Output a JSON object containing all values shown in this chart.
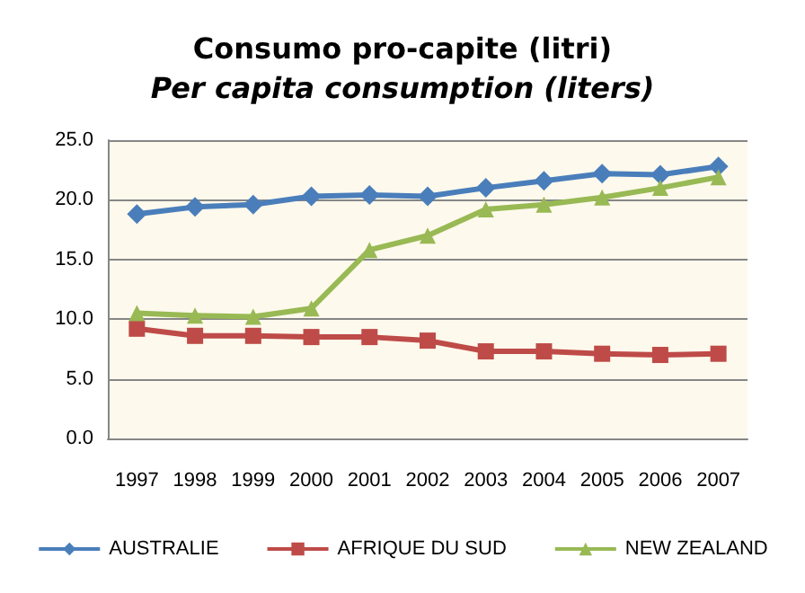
{
  "chart_data": {
    "type": "line",
    "title": "Consumo pro-capite (litri)",
    "subtitle": "Per capita consumption (liters)",
    "categories": [
      "1997",
      "1998",
      "1999",
      "2000",
      "2001",
      "2002",
      "2003",
      "2004",
      "2005",
      "2006",
      "2007"
    ],
    "series": [
      {
        "name": "AUSTRALIE",
        "color": "#4a7ebb",
        "marker": "diamond",
        "values": [
          18.8,
          19.4,
          19.6,
          20.3,
          20.4,
          20.3,
          21.0,
          21.6,
          22.2,
          22.1,
          22.8
        ]
      },
      {
        "name": "AFRIQUE DU SUD",
        "color": "#be4b48",
        "marker": "square",
        "values": [
          9.2,
          8.6,
          8.6,
          8.5,
          8.5,
          8.2,
          7.3,
          7.3,
          7.1,
          7.0,
          7.1
        ]
      },
      {
        "name": "NEW ZEALAND",
        "color": "#98b954",
        "marker": "triangle",
        "values": [
          10.5,
          10.3,
          10.2,
          10.9,
          15.8,
          17.0,
          19.2,
          19.6,
          20.2,
          21.0,
          21.9
        ]
      }
    ],
    "ylim": [
      0,
      25
    ],
    "yticks": [
      {
        "value": 0,
        "label": "0.0"
      },
      {
        "value": 5,
        "label": "5.0"
      },
      {
        "value": 10,
        "label": "10.0"
      },
      {
        "value": 15,
        "label": "15.0"
      },
      {
        "value": 20,
        "label": "20.0"
      },
      {
        "value": 25,
        "label": "25.0"
      }
    ],
    "grid": "y",
    "legend": "bottom"
  }
}
